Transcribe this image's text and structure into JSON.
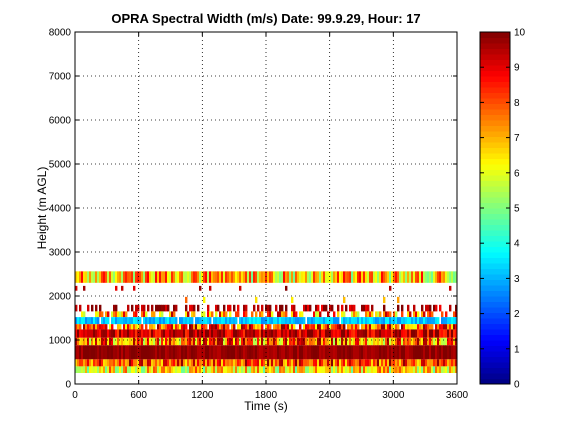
{
  "chart_data": {
    "type": "heatmap",
    "title": "OPRA Spectral Width (m/s)  Date: 99.9.29, Hour: 17",
    "xlabel": "Time (s)",
    "ylabel": "Height (m AGL)",
    "xlim": [
      0,
      3600
    ],
    "ylim": [
      0,
      8000
    ],
    "x_ticks": [
      "0",
      "600",
      "1200",
      "1800",
      "2400",
      "3000",
      "3600"
    ],
    "y_ticks": [
      "0",
      "1000",
      "2000",
      "3000",
      "4000",
      "5000",
      "6000",
      "7000",
      "8000"
    ],
    "grid": true,
    "colorbar": {
      "range": [
        0,
        10
      ],
      "colormap": "jet",
      "ticks": [
        "0",
        "1",
        "2",
        "3",
        "4",
        "5",
        "6",
        "7",
        "8",
        "9",
        "10"
      ]
    },
    "bands": [
      {
        "z0": 2300,
        "z1": 2560,
        "level": 6.8,
        "variability": 2.0,
        "coverage": 1.0
      },
      {
        "z0": 2120,
        "z1": 2230,
        "level": 9.5,
        "variability": 0.6,
        "coverage": 0.06
      },
      {
        "z0": 1840,
        "z1": 1980,
        "level": 7.2,
        "variability": 1.0,
        "coverage": 0.05
      },
      {
        "z0": 1650,
        "z1": 1800,
        "level": 9.6,
        "variability": 0.8,
        "coverage": 0.45
      },
      {
        "z0": 1520,
        "z1": 1650,
        "level": 7.5,
        "variability": 2.0,
        "coverage": 0.55
      },
      {
        "z0": 1360,
        "z1": 1520,
        "level": 3.2,
        "variability": 0.6,
        "coverage": 0.95
      },
      {
        "z0": 1240,
        "z1": 1360,
        "level": 8.0,
        "variability": 2.0,
        "coverage": 0.9
      },
      {
        "z0": 1050,
        "z1": 1240,
        "level": 9.3,
        "variability": 1.2,
        "coverage": 1.0
      },
      {
        "z0": 880,
        "z1": 1050,
        "level": 7.6,
        "variability": 2.2,
        "coverage": 1.0
      },
      {
        "z0": 560,
        "z1": 880,
        "level": 9.8,
        "variability": 0.4,
        "coverage": 1.0
      },
      {
        "z0": 400,
        "z1": 560,
        "level": 8.2,
        "variability": 1.8,
        "coverage": 1.0
      },
      {
        "z0": 250,
        "z1": 400,
        "level": 6.4,
        "variability": 1.8,
        "coverage": 1.0
      }
    ]
  }
}
